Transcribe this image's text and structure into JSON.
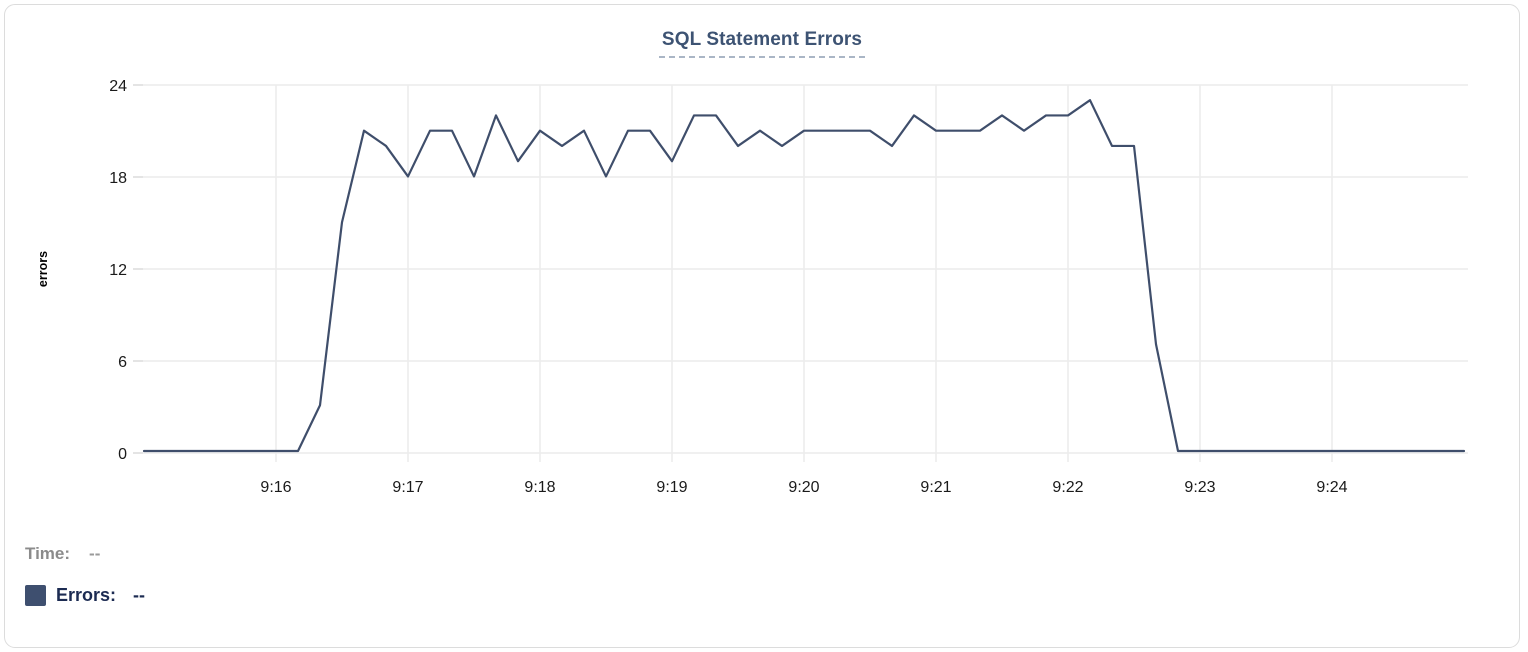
{
  "chart": {
    "title": "SQL Statement Errors"
  },
  "chart_data": {
    "type": "line",
    "title": "SQL Statement Errors",
    "xlabel": "",
    "ylabel": "errors",
    "ylim": [
      0,
      24
    ],
    "y_ticks": [
      0,
      6,
      12,
      18,
      24
    ],
    "x_tick_labels": [
      "9:16",
      "9:17",
      "9:18",
      "9:19",
      "9:20",
      "9:21",
      "9:22",
      "9:23",
      "9:24"
    ],
    "x_start": "9:15:00",
    "x_end": "9:25:00",
    "x_step_seconds": 10,
    "grid": true,
    "legend_position": "bottom-left",
    "series": [
      {
        "name": "Errors",
        "color": "#3f4e6b",
        "values": [
          0,
          0,
          0,
          0,
          0,
          0,
          0,
          0,
          3,
          15,
          21,
          20,
          18,
          21,
          21,
          18,
          22,
          19,
          21,
          20,
          21,
          18,
          21,
          21,
          19,
          22,
          22,
          20,
          21,
          20,
          21,
          21,
          21,
          21,
          20,
          22,
          21,
          21,
          21,
          22,
          21,
          22,
          22,
          23,
          20,
          20,
          7,
          0,
          0,
          0,
          0,
          0,
          0,
          0,
          0,
          0,
          0,
          0,
          0,
          0,
          0
        ]
      }
    ]
  },
  "readouts": {
    "time_label": "Time:",
    "time_value": "--",
    "errors_label": "Errors:",
    "errors_value": "--"
  },
  "colors": {
    "line": "#3f4e6b",
    "title_text": "#3d5373",
    "title_underline": "#aab6c6",
    "grid": "#ececec",
    "axis_text": "#1a1a1a",
    "ylabel_text": "#000000",
    "time_text": "#8b8b8b",
    "errors_text": "#1c2b52",
    "legend_swatch": "#3e4f6f",
    "card_border": "#dcdcdc"
  }
}
